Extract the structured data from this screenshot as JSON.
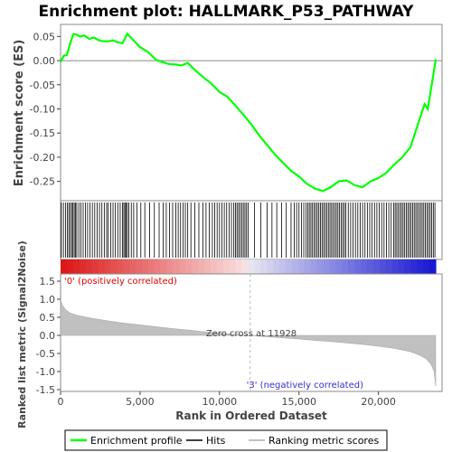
{
  "chart_data": {
    "type": "line",
    "title": "Enrichment plot: HALLMARK_P53_PATHWAY",
    "es_panel": {
      "ylabel": "Enrichment score (ES)",
      "ylim": [
        -0.29,
        0.075
      ],
      "yticks": [
        0.05,
        0.0,
        -0.05,
        -0.1,
        -0.15,
        -0.2,
        -0.25
      ],
      "ytick_labels": [
        "0.05",
        "0.00",
        "-0.05",
        "-0.10",
        "-0.15",
        "-0.20",
        "-0.25"
      ],
      "series": [
        {
          "name": "Enrichment profile",
          "color": "#00ff00",
          "x": [
            0,
            200,
            400,
            600,
            800,
            1000,
            1200,
            1500,
            1800,
            2100,
            2400,
            2700,
            3000,
            3300,
            3600,
            3900,
            4200,
            4500,
            5000,
            5500,
            6000,
            6400,
            6800,
            7200,
            7600,
            8000,
            8400,
            9000,
            9500,
            10000,
            10500,
            11000,
            11500,
            12000,
            12500,
            13000,
            13500,
            14000,
            14500,
            15000,
            15500,
            16000,
            16500,
            17000,
            17500,
            18000,
            18500,
            19000,
            19500,
            20000,
            20500,
            21000,
            21500,
            22000,
            22300,
            22600,
            22900,
            23100,
            23300,
            23450,
            23600
          ],
          "y": [
            -0.003,
            0.01,
            0.012,
            0.035,
            0.055,
            0.054,
            0.05,
            0.052,
            0.045,
            0.048,
            0.042,
            0.04,
            0.04,
            0.042,
            0.038,
            0.036,
            0.056,
            0.045,
            0.028,
            0.018,
            0.002,
            -0.003,
            -0.007,
            -0.008,
            -0.01,
            -0.005,
            -0.018,
            -0.035,
            -0.048,
            -0.065,
            -0.075,
            -0.093,
            -0.112,
            -0.132,
            -0.155,
            -0.175,
            -0.195,
            -0.212,
            -0.228,
            -0.24,
            -0.255,
            -0.265,
            -0.27,
            -0.262,
            -0.25,
            -0.248,
            -0.258,
            -0.262,
            -0.25,
            -0.243,
            -0.232,
            -0.215,
            -0.2,
            -0.18,
            -0.15,
            -0.12,
            -0.09,
            -0.1,
            -0.06,
            -0.03,
            0.003
          ]
        }
      ]
    },
    "hits_panel": {
      "hit_positions": [
        50,
        180,
        310,
        420,
        520,
        610,
        700,
        780,
        860,
        940,
        1020,
        1150,
        1280,
        1420,
        1560,
        1700,
        1850,
        2000,
        2150,
        2300,
        2450,
        2600,
        2750,
        2900,
        3000,
        3150,
        3300,
        3450,
        3600,
        3750,
        3900,
        3980,
        4050,
        4120,
        4200,
        4300,
        4450,
        4600,
        4800,
        5050,
        5300,
        5600,
        5900,
        6200,
        6450,
        6650,
        6850,
        7050,
        7250,
        7400,
        7550,
        7700,
        7850,
        8000,
        8200,
        8450,
        8700,
        8950,
        9150,
        9350,
        9550,
        9700,
        9850,
        10000,
        10150,
        10300,
        10450,
        10600,
        10750,
        10900,
        11000,
        11100,
        11200,
        11300,
        11400,
        11500,
        11600,
        11700,
        11800,
        12200,
        12600,
        13000,
        13300,
        13600,
        13900,
        14200,
        14500,
        14700,
        14850,
        15000,
        15150,
        15300,
        15450,
        15550,
        15650,
        15750,
        15850,
        15950,
        16050,
        16150,
        16250,
        16350,
        16450,
        16550,
        16650,
        16750,
        16850,
        16950,
        17050,
        17150,
        17250,
        17350,
        17450,
        17550,
        17650,
        17750,
        17850,
        17950,
        18100,
        18250,
        18400,
        18550,
        18700,
        18850,
        19000,
        19150,
        19300,
        19450,
        19600,
        19750,
        19900,
        20050,
        20200,
        20350,
        20500,
        20650,
        20800,
        20950,
        21050,
        21150,
        21250,
        21350,
        21450,
        21550,
        21650,
        21750,
        21850,
        21950,
        22050,
        22150,
        22250,
        22350,
        22450,
        22550,
        22650,
        22750,
        22850,
        22950,
        23050,
        23150,
        23250,
        23350,
        23450,
        23550
      ]
    },
    "metric_panel": {
      "ylabel": "Ranked list metric (Signal2Noise)",
      "ylim": [
        -1.55,
        1.7
      ],
      "yticks": [
        1.5,
        1.0,
        0.5,
        0.0,
        -0.5,
        -1.0,
        -1.5
      ],
      "ytick_labels": [
        "1.5",
        "1.0",
        "0.5",
        "0.0",
        "-0.5",
        "-1.0",
        "-1.5"
      ],
      "positive_label": "'0' (positively correlated)",
      "negative_label": "'3' (negatively correlated)",
      "zero_cross_label": "Zero cross at 11928",
      "zero_cross": 11928,
      "x": [
        0,
        100,
        300,
        600,
        1000,
        2000,
        3000,
        4000,
        5000,
        6000,
        7000,
        8000,
        9000,
        10000,
        11000,
        11928,
        13000,
        14000,
        15000,
        16000,
        17000,
        18000,
        19000,
        20000,
        21000,
        22000,
        22600,
        23000,
        23300,
        23500,
        23600
      ],
      "values": [
        1.0,
        0.85,
        0.72,
        0.62,
        0.56,
        0.47,
        0.4,
        0.34,
        0.29,
        0.24,
        0.19,
        0.15,
        0.1,
        0.06,
        0.03,
        0.0,
        -0.04,
        -0.07,
        -0.1,
        -0.14,
        -0.17,
        -0.21,
        -0.25,
        -0.3,
        -0.36,
        -0.45,
        -0.55,
        -0.65,
        -0.8,
        -1.0,
        -1.4
      ]
    },
    "xlabel": "Rank in Ordered Dataset",
    "xlim": [
      0,
      24000
    ],
    "xticks": [
      0,
      5000,
      10000,
      15000,
      20000
    ],
    "xtick_labels": [
      "0",
      "5,000",
      "10,000",
      "15,000",
      "20,000"
    ],
    "legend": {
      "placement": "bottom",
      "entries": [
        {
          "label": "Enrichment profile",
          "color": "#00ff00"
        },
        {
          "label": "Hits",
          "color": "#000000"
        },
        {
          "label": "Ranking metric scores",
          "color": "#c0c0c0"
        }
      ]
    }
  }
}
